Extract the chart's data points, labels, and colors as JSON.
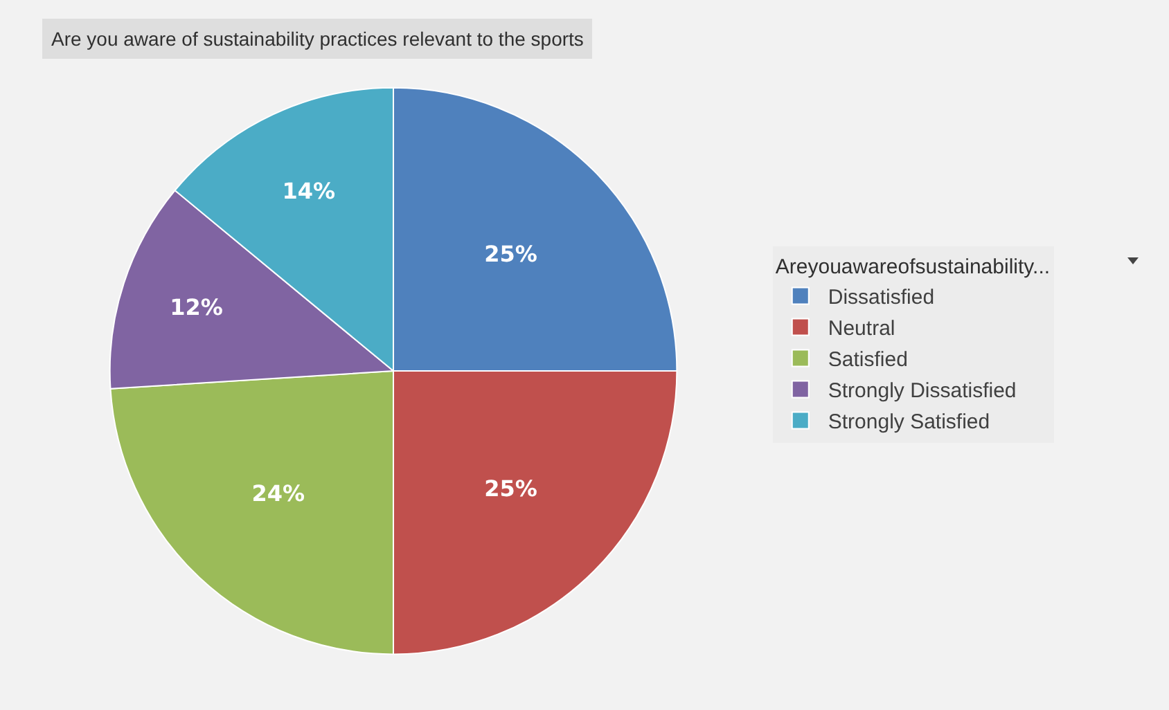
{
  "chart_data": {
    "type": "pie",
    "title": "Are you aware of sustainability practices relevant to the sports",
    "legend_title": "Areyouawareofsustainability...",
    "categories": [
      "Dissatisfied",
      "Neutral",
      "Satisfied",
      "Strongly Dissatisfied",
      "Strongly Satisfied"
    ],
    "values": [
      25,
      25,
      24,
      12,
      14
    ],
    "colors": [
      "#4f81bd",
      "#c0504d",
      "#9bbb59",
      "#8064a2",
      "#4bacc6"
    ],
    "value_labels": [
      "25%",
      "25%",
      "24%",
      "12%",
      "14%"
    ],
    "legend": "right"
  }
}
